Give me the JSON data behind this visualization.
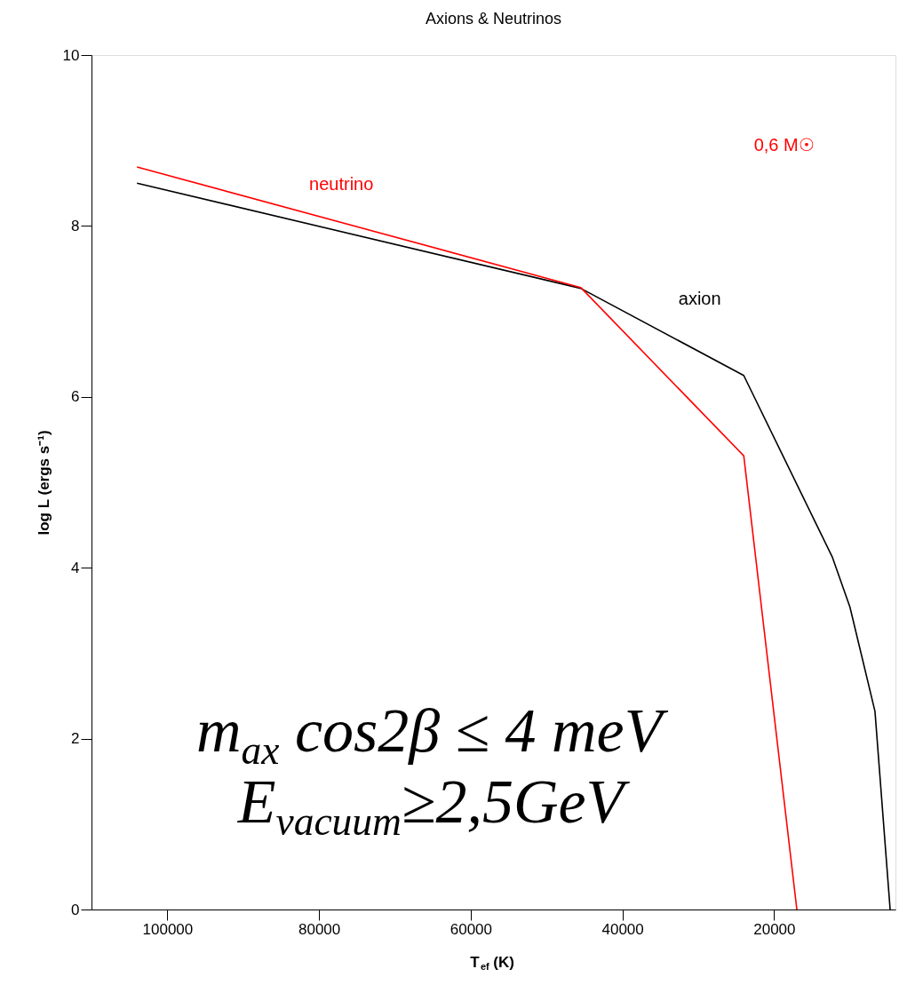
{
  "chart_data": {
    "type": "line",
    "title": "Axions & Neutrinos",
    "xlabel": "T$_{ef}$ (K)",
    "ylabel": "log L (ergs s⁻¹)",
    "xlim": [
      110000,
      4000
    ],
    "xticks": [
      100000,
      80000,
      60000,
      40000,
      20000
    ],
    "ylim": [
      0,
      10
    ],
    "yticks": [
      0,
      2,
      4,
      6,
      8,
      10
    ],
    "grid": false,
    "marker": "none",
    "line_style": "solid",
    "series": [
      {
        "name": "axion",
        "color": "#000000",
        "x": [
          104000,
          45500,
          24000,
          12300,
          10000,
          6700,
          4700
        ],
        "values": [
          8.5,
          7.27,
          6.25,
          4.12,
          3.54,
          2.32,
          0
        ]
      },
      {
        "name": "neutrino",
        "color": "#ff0000",
        "x": [
          104000,
          45500,
          24000,
          17000
        ],
        "values": [
          8.69,
          7.28,
          5.31,
          0
        ]
      }
    ],
    "annotations": [
      "0,6 M☉",
      "m$_{ax}$ cos2β ≤ 4 meV",
      "E$_{vacuum}$≥2,5GeV"
    ]
  }
}
